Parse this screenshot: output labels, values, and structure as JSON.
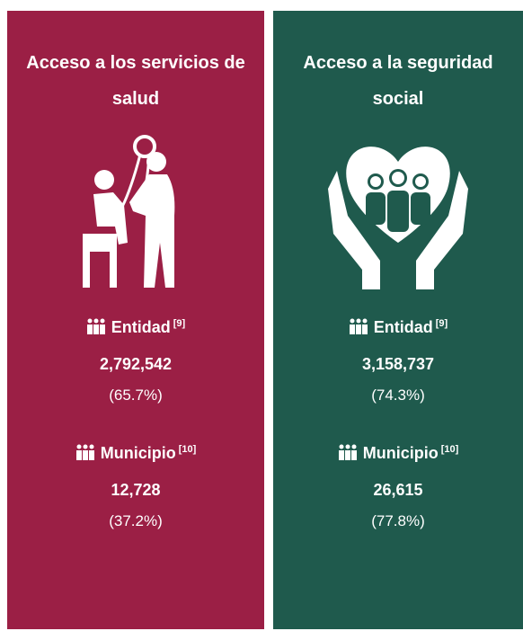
{
  "cards": [
    {
      "title": "Acceso a los servicios de salud",
      "entidad": {
        "label": "Entidad",
        "note": "[9]",
        "value": "2,792,542",
        "percent": "(65.7%)"
      },
      "municipio": {
        "label": "Municipio",
        "note": "[10]",
        "value": "12,728",
        "percent": "(37.2%)"
      }
    },
    {
      "title": "Acceso a la seguridad social",
      "entidad": {
        "label": "Entidad",
        "note": "[9]",
        "value": "3,158,737",
        "percent": "(74.3%)"
      },
      "municipio": {
        "label": "Municipio",
        "note": "[10]",
        "value": "26,615",
        "percent": "(77.8%)"
      }
    }
  ]
}
